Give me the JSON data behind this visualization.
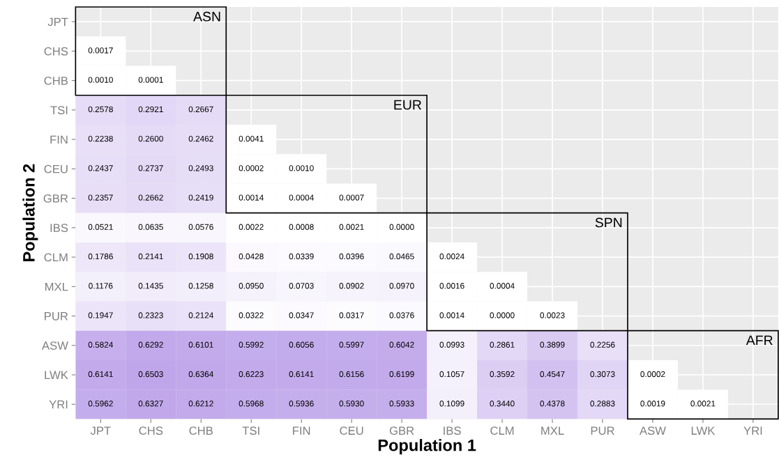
{
  "chart_data": {
    "type": "heatmap",
    "xlabel": "Population 1",
    "ylabel": "Population 2",
    "grid": true,
    "data_labels": true,
    "categories": [
      "JPT",
      "CHS",
      "CHB",
      "TSI",
      "FIN",
      "CEU",
      "GBR",
      "IBS",
      "CLM",
      "MXL",
      "PUR",
      "ASW",
      "LWK",
      "YRI"
    ],
    "y_categories": [
      "JPT",
      "CHS",
      "CHB",
      "TSI",
      "FIN",
      "CEU",
      "GBR",
      "IBS",
      "CLM",
      "MXL",
      "PUR",
      "ASW",
      "LWK",
      "YRI"
    ],
    "cells": [
      [
        null,
        null,
        null,
        null,
        null,
        null,
        null,
        null,
        null,
        null,
        null,
        null,
        null,
        null
      ],
      [
        0.0017,
        null,
        null,
        null,
        null,
        null,
        null,
        null,
        null,
        null,
        null,
        null,
        null,
        null
      ],
      [
        0.001,
        0.0001,
        null,
        null,
        null,
        null,
        null,
        null,
        null,
        null,
        null,
        null,
        null,
        null
      ],
      [
        0.2578,
        0.2921,
        0.2667,
        null,
        null,
        null,
        null,
        null,
        null,
        null,
        null,
        null,
        null,
        null
      ],
      [
        0.2238,
        0.26,
        0.2462,
        0.0041,
        null,
        null,
        null,
        null,
        null,
        null,
        null,
        null,
        null,
        null
      ],
      [
        0.2437,
        0.2737,
        0.2493,
        0.0002,
        0.001,
        null,
        null,
        null,
        null,
        null,
        null,
        null,
        null,
        null
      ],
      [
        0.2357,
        0.2662,
        0.2419,
        0.0014,
        0.0004,
        0.0007,
        null,
        null,
        null,
        null,
        null,
        null,
        null,
        null
      ],
      [
        0.0521,
        0.0635,
        0.0576,
        0.0022,
        0.0008,
        0.0021,
        0.0,
        null,
        null,
        null,
        null,
        null,
        null,
        null
      ],
      [
        0.1786,
        0.2141,
        0.1908,
        0.0428,
        0.0339,
        0.0396,
        0.0465,
        0.0024,
        null,
        null,
        null,
        null,
        null,
        null
      ],
      [
        0.1176,
        0.1435,
        0.1258,
        0.095,
        0.0703,
        0.0902,
        0.097,
        0.0016,
        0.0004,
        null,
        null,
        null,
        null,
        null
      ],
      [
        0.1947,
        0.2323,
        0.2124,
        0.0322,
        0.0347,
        0.0317,
        0.0376,
        0.0014,
        0.0,
        0.0023,
        null,
        null,
        null,
        null
      ],
      [
        0.5824,
        0.6292,
        0.6101,
        0.5992,
        0.6056,
        0.5997,
        0.6042,
        0.0993,
        0.2861,
        0.3899,
        0.2256,
        null,
        null,
        null
      ],
      [
        0.6141,
        0.6503,
        0.6364,
        0.6223,
        0.6141,
        0.6156,
        0.6199,
        0.1057,
        0.3592,
        0.4547,
        0.3073,
        0.0002,
        null,
        null
      ],
      [
        0.5962,
        0.6327,
        0.6212,
        0.5968,
        0.5936,
        0.593,
        0.5933,
        0.1099,
        0.344,
        0.4378,
        0.2883,
        0.0019,
        0.0021,
        null
      ]
    ],
    "cell_labels": [
      [
        null,
        null,
        null,
        null,
        null,
        null,
        null,
        null,
        null,
        null,
        null,
        null,
        null,
        null
      ],
      [
        "0.0017",
        null,
        null,
        null,
        null,
        null,
        null,
        null,
        null,
        null,
        null,
        null,
        null,
        null
      ],
      [
        "0.0010",
        "0.0001",
        null,
        null,
        null,
        null,
        null,
        null,
        null,
        null,
        null,
        null,
        null,
        null
      ],
      [
        "0.2578",
        "0.2921",
        "0.2667",
        null,
        null,
        null,
        null,
        null,
        null,
        null,
        null,
        null,
        null,
        null
      ],
      [
        "0.2238",
        "0.2600",
        "0.2462",
        "0.0041",
        null,
        null,
        null,
        null,
        null,
        null,
        null,
        null,
        null,
        null
      ],
      [
        "0.2437",
        "0.2737",
        "0.2493",
        "0.0002",
        "0.0010",
        null,
        null,
        null,
        null,
        null,
        null,
        null,
        null,
        null
      ],
      [
        "0.2357",
        "0.2662",
        "0.2419",
        "0.0014",
        "0.0004",
        "0.0007",
        null,
        null,
        null,
        null,
        null,
        null,
        null,
        null
      ],
      [
        "0.0521",
        "0.0635",
        "0.0576",
        "0.0022",
        "0.0008",
        "0.0021",
        "0.0000",
        null,
        null,
        null,
        null,
        null,
        null,
        null
      ],
      [
        "0.1786",
        "0.2141",
        "0.1908",
        "0.0428",
        "0.0339",
        "0.0396",
        "0.0465",
        "0.0024",
        null,
        null,
        null,
        null,
        null,
        null
      ],
      [
        "0.1176",
        "0.1435",
        "0.1258",
        "0.0950",
        "0.0703",
        "0.0902",
        "0.0970",
        "0.0016",
        "0.0004",
        null,
        null,
        null,
        null,
        null
      ],
      [
        "0.1947",
        "0.2323",
        "0.2124",
        "0.0322",
        "0.0347",
        "0.0317",
        "0.0376",
        "0.0014",
        "0.0000",
        "0.0023",
        null,
        null,
        null,
        null
      ],
      [
        "0.5824",
        "0.6292",
        "0.6101",
        "0.5992",
        "0.6056",
        "0.5997",
        "0.6042",
        "0.0993",
        "0.2861",
        "0.3899",
        "0.2256",
        null,
        null,
        null
      ],
      [
        "0.6141",
        "0.6503",
        "0.6364",
        "0.6223",
        "0.6141",
        "0.6156",
        "0.6199",
        "0.1057",
        "0.3592",
        "0.4547",
        "0.3073",
        "0.0002",
        null,
        null
      ],
      [
        "0.5962",
        "0.6327",
        "0.6212",
        "0.5968",
        "0.5936",
        "0.5930",
        "0.5933",
        "0.1099",
        "0.3440",
        "0.4378",
        "0.2883",
        "0.0019",
        "0.0021",
        null
      ]
    ],
    "annotations": [
      "ASN",
      "EUR",
      "SPN",
      "AFR"
    ]
  }
}
